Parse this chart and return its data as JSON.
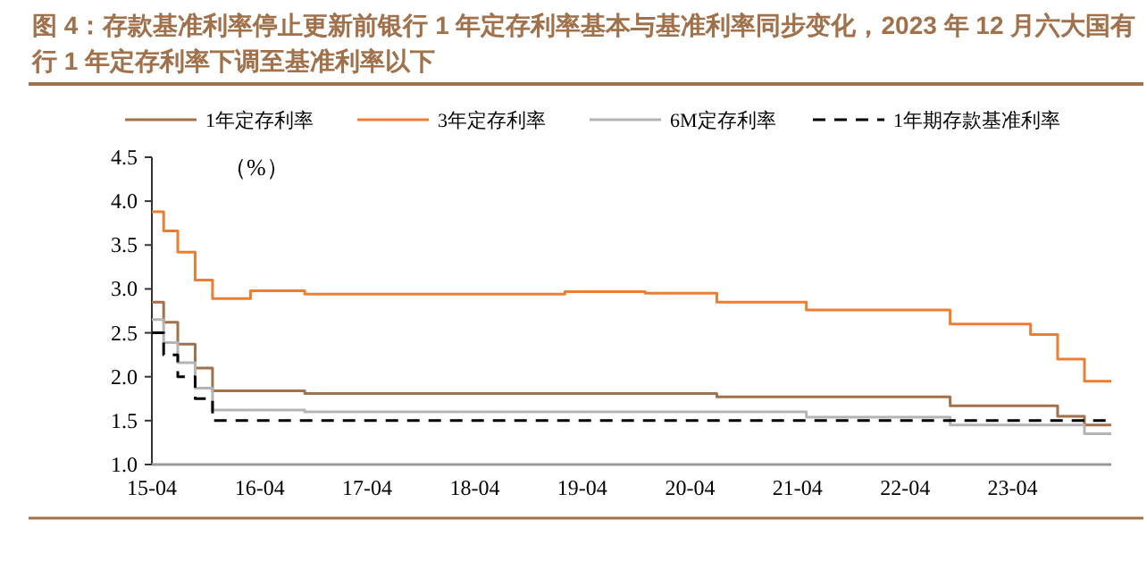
{
  "chart_data": {
    "type": "step",
    "title": "图 4：存款基准利率停止更新前银行 1 年定存利率基本与基准利率同步变化，2023 年 12 月六大国有行 1 年定存利率下调至基准利率以下",
    "ylabel": "（%）",
    "xlim": [
      "2015-04",
      "2024-03"
    ],
    "xticks": [
      {
        "value": "2015-04",
        "label": "15-04"
      },
      {
        "value": "2016-04",
        "label": "16-04"
      },
      {
        "value": "2017-04",
        "label": "17-04"
      },
      {
        "value": "2018-04",
        "label": "18-04"
      },
      {
        "value": "2019-04",
        "label": "19-04"
      },
      {
        "value": "2020-04",
        "label": "20-04"
      },
      {
        "value": "2021-04",
        "label": "21-04"
      },
      {
        "value": "2022-04",
        "label": "22-04"
      },
      {
        "value": "2023-04",
        "label": "23-04"
      }
    ],
    "ylim": [
      1.0,
      4.5
    ],
    "yticks": [
      {
        "value": 1,
        "label": "1.0"
      },
      {
        "value": 1.5,
        "label": "1.5"
      },
      {
        "value": 2,
        "label": "2.0"
      },
      {
        "value": 2.5,
        "label": "2.5"
      },
      {
        "value": 3,
        "label": "3.0"
      },
      {
        "value": 3.5,
        "label": "3.5"
      },
      {
        "value": 4,
        "label": "4.0"
      },
      {
        "value": 4.5,
        "label": "4.5"
      }
    ],
    "grid": false,
    "legend": "top",
    "marker": "none",
    "series": [
      {
        "name": "1年定存利率",
        "color": "#a0714a",
        "line_style": "solid",
        "x": [
          "2015-04",
          "2015-05-11",
          "2015-06-28",
          "2015-08-26",
          "2015-10-24",
          "2016-09",
          "2020-07",
          "2022-09",
          "2023-09",
          "2023-12",
          "2024-03"
        ],
        "values": [
          2.85,
          2.62,
          2.37,
          2.1,
          1.84,
          1.81,
          1.77,
          1.67,
          1.55,
          1.45,
          1.45
        ]
      },
      {
        "name": "3年定存利率",
        "color": "#ed7d31",
        "line_style": "solid",
        "x": [
          "2015-04",
          "2015-05-11",
          "2015-06-28",
          "2015-08-26",
          "2015-10-24",
          "2016-03",
          "2016-09",
          "2019-02",
          "2019-11",
          "2020-07",
          "2021-05",
          "2022-09",
          "2023-06",
          "2023-09",
          "2023-12",
          "2024-03"
        ],
        "values": [
          3.88,
          3.66,
          3.42,
          3.1,
          2.89,
          2.98,
          2.94,
          2.97,
          2.95,
          2.85,
          2.76,
          2.6,
          2.48,
          2.2,
          1.95,
          1.95
        ]
      },
      {
        "name": "6M定存利率",
        "color": "#b4b4b4",
        "line_style": "solid",
        "x": [
          "2015-04",
          "2015-05-11",
          "2015-06-28",
          "2015-08-26",
          "2015-10-24",
          "2016-09",
          "2021-05",
          "2022-09",
          "2023-12",
          "2024-03"
        ],
        "values": [
          2.65,
          2.39,
          2.16,
          1.87,
          1.62,
          1.6,
          1.54,
          1.45,
          1.35,
          1.35
        ]
      },
      {
        "name": "1年期存款基准利率",
        "color": "#000000",
        "line_style": "dashed",
        "x": [
          "2015-04",
          "2015-05-11",
          "2015-06-28",
          "2015-08-26",
          "2015-10-24",
          "2024-03"
        ],
        "values": [
          2.5,
          2.25,
          2.0,
          1.75,
          1.5,
          1.5
        ]
      }
    ]
  }
}
